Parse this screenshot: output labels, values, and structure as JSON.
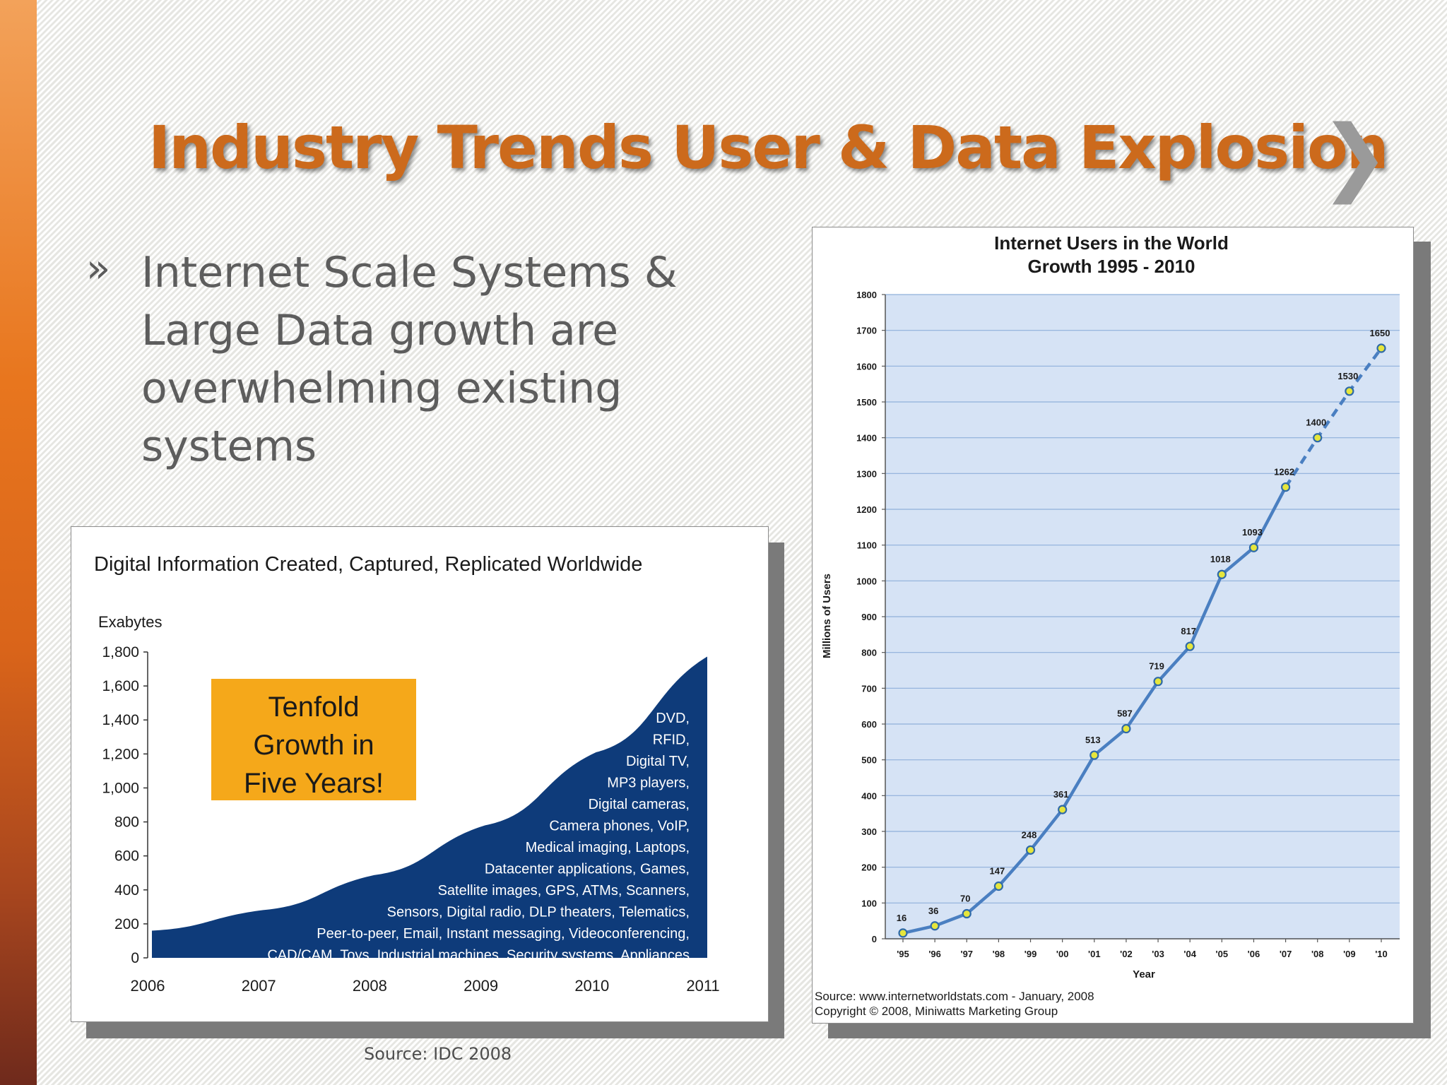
{
  "slide": {
    "title": "Industry Trends User & Data Explosion",
    "title_chevron": "❯",
    "bullet_marker": "»",
    "bullet_text": "Internet Scale Systems & Large Data growth are overwhelming existing systems",
    "left_source": "Source: IDC 2008",
    "colors": {
      "title": "#cc6a1c",
      "accent_bar": "#e8761e",
      "area_fill": "#0e3b7a",
      "callout": "#f5a81a",
      "line": "#4a7fc1",
      "plot_bg": "#d6e3f5"
    }
  },
  "chart_data": [
    {
      "type": "area",
      "title": "Digital Information Created, Captured, Replicated Worldwide",
      "ylabel": "Exabytes",
      "xlabel": "",
      "categories": [
        "2006",
        "2007",
        "2008",
        "2009",
        "2010",
        "2011"
      ],
      "values": [
        160,
        281,
        487,
        780,
        1210,
        1773
      ],
      "ylim": [
        0,
        1800
      ],
      "yticks": [
        "0",
        "200",
        "400",
        "600",
        "800",
        "1,000",
        "1,200",
        "1,400",
        "1,600",
        "1,800"
      ],
      "callout": [
        "Tenfold",
        "Growth in",
        "Five Years!"
      ],
      "area_labels": [
        "DVD,",
        "RFID,",
        "Digital TV,",
        "MP3 players,",
        "Digital cameras,",
        "Camera phones, VoIP,",
        "Medical imaging, Laptops,",
        "Datacenter applications, Games,",
        "Satellite images, GPS, ATMs, Scanners,",
        "Sensors, Digital radio, DLP theaters, Telematics,",
        "Peer-to-peer, Email, Instant messaging, Videoconferencing,",
        "CAD/CAM, Toys, Industrial machines, Security systems, Appliances"
      ],
      "grid": false
    },
    {
      "type": "line",
      "title": "Internet Users in the World",
      "subtitle": "Growth 1995 - 2010",
      "xlabel": "Year",
      "ylabel": "Millions of Users",
      "categories": [
        "'95",
        "'96",
        "'97",
        "'98",
        "'99",
        "'00",
        "'01",
        "'02",
        "'03",
        "'04",
        "'05",
        "'06",
        "'07",
        "'08",
        "'09",
        "'10"
      ],
      "values": [
        16,
        36,
        70,
        147,
        248,
        361,
        513,
        587,
        719,
        817,
        1018,
        1093,
        1262,
        1400,
        1530,
        1650
      ],
      "data_labels": [
        "16",
        "36",
        "70",
        "147",
        "248",
        "361",
        "513",
        "587",
        "719",
        "817",
        "1018",
        "1093",
        "1262",
        "1400",
        "1530",
        "1650"
      ],
      "projected_from_index": 12,
      "ylim": [
        0,
        1800
      ],
      "yticks": [
        "0",
        "100",
        "200",
        "300",
        "400",
        "500",
        "600",
        "700",
        "800",
        "900",
        "1000",
        "1100",
        "1200",
        "1300",
        "1400",
        "1500",
        "1600",
        "1700",
        "1800"
      ],
      "grid": true,
      "source_lines": [
        "Source: www.internetworldstats.com - January, 2008",
        "Copyright © 2008, Miniwatts Marketing Group"
      ]
    }
  ]
}
